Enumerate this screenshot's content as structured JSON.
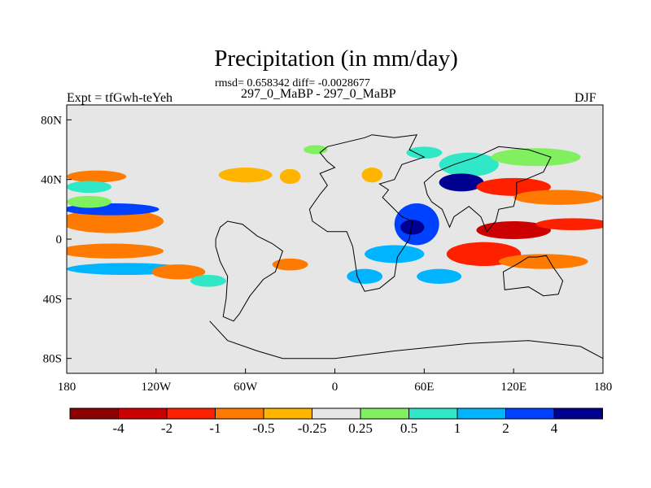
{
  "chart_data": {
    "type": "heatmap",
    "title": "Precipitation (in mm/day)",
    "subtitle": "rmsd= 0.658342 diff= -0.0028677",
    "left_label": "Expt = tfGwh-teYeh",
    "center_label": "297_0_MaBP - 297_0_MaBP",
    "right_label": "DJF",
    "x_axis": {
      "ticks": [
        {
          "value": -180,
          "label": "180"
        },
        {
          "value": -120,
          "label": "120W"
        },
        {
          "value": -60,
          "label": "60W"
        },
        {
          "value": 0,
          "label": "0"
        },
        {
          "value": 60,
          "label": "60E"
        },
        {
          "value": 120,
          "label": "120E"
        },
        {
          "value": 180,
          "label": "180"
        }
      ],
      "range": [
        -180,
        180
      ]
    },
    "y_axis": {
      "ticks": [
        {
          "value": 80,
          "label": "80N"
        },
        {
          "value": 40,
          "label": "40N"
        },
        {
          "value": 0,
          "label": "0"
        },
        {
          "value": -40,
          "label": "40S"
        },
        {
          "value": -80,
          "label": "80S"
        }
      ],
      "range": [
        -90,
        90
      ]
    },
    "colorbar": {
      "levels": [
        "-4",
        "-2",
        "-1",
        "-0.5",
        "-0.25",
        "0.25",
        "0.5",
        "1",
        "2",
        "4"
      ],
      "colors": [
        "#8b0000",
        "#cc0000",
        "#ff2000",
        "#ff7a00",
        "#ffb400",
        "#e6e6e6",
        "#80f060",
        "#30e8c8",
        "#00b4ff",
        "#0040ff",
        "#000090"
      ]
    },
    "anomaly_regions": [
      {
        "lon": -163,
        "lat": 11,
        "rlon": 22,
        "rlat": 4,
        "bin": 1
      },
      {
        "lon": -150,
        "lat": 12,
        "rlon": 35,
        "rlat": 8,
        "bin": 3
      },
      {
        "lon": -150,
        "lat": 20,
        "rlon": 32,
        "rlat": 4,
        "bin": 9
      },
      {
        "lon": -165,
        "lat": 25,
        "rlon": 15,
        "rlat": 4,
        "bin": 6
      },
      {
        "lon": -160,
        "lat": 42,
        "rlon": 20,
        "rlat": 4,
        "bin": 3
      },
      {
        "lon": -165,
        "lat": 35,
        "rlon": 15,
        "rlat": 4,
        "bin": 7
      },
      {
        "lon": -150,
        "lat": -8,
        "rlon": 35,
        "rlat": 5,
        "bin": 3
      },
      {
        "lon": -140,
        "lat": -20,
        "rlon": 40,
        "rlat": 4,
        "bin": 8
      },
      {
        "lon": -105,
        "lat": -22,
        "rlon": 18,
        "rlat": 5,
        "bin": 3
      },
      {
        "lon": -85,
        "lat": -28,
        "rlon": 12,
        "rlat": 4,
        "bin": 7
      },
      {
        "lon": -30,
        "lat": -17,
        "rlon": 12,
        "rlat": 4,
        "bin": 3
      },
      {
        "lon": -60,
        "lat": 43,
        "rlon": 18,
        "rlat": 5,
        "bin": 4
      },
      {
        "lon": -30,
        "lat": 42,
        "rlon": 7,
        "rlat": 5,
        "bin": 4
      },
      {
        "lon": -13,
        "lat": 60,
        "rlon": 8,
        "rlat": 3,
        "bin": 6
      },
      {
        "lon": 25,
        "lat": 43,
        "rlon": 7,
        "rlat": 5,
        "bin": 4
      },
      {
        "lon": 60,
        "lat": 58,
        "rlon": 12,
        "rlat": 4,
        "bin": 7
      },
      {
        "lon": 90,
        "lat": 50,
        "rlon": 20,
        "rlat": 8,
        "bin": 7
      },
      {
        "lon": 135,
        "lat": 55,
        "rlon": 30,
        "rlat": 6,
        "bin": 6
      },
      {
        "lon": 85,
        "lat": 38,
        "rlon": 15,
        "rlat": 6,
        "bin": 10
      },
      {
        "lon": 120,
        "lat": 35,
        "rlon": 25,
        "rlat": 6,
        "bin": 2
      },
      {
        "lon": 150,
        "lat": 28,
        "rlon": 30,
        "rlat": 5,
        "bin": 3
      },
      {
        "lon": 55,
        "lat": 10,
        "rlon": 15,
        "rlat": 14,
        "bin": 9
      },
      {
        "lon": 52,
        "lat": 8,
        "rlon": 8,
        "rlat": 5,
        "bin": 10
      },
      {
        "lon": 40,
        "lat": -10,
        "rlon": 20,
        "rlat": 6,
        "bin": 8
      },
      {
        "lon": 20,
        "lat": -25,
        "rlon": 12,
        "rlat": 5,
        "bin": 8
      },
      {
        "lon": 70,
        "lat": -25,
        "rlon": 15,
        "rlat": 5,
        "bin": 8
      },
      {
        "lon": 120,
        "lat": 6,
        "rlon": 25,
        "rlat": 6,
        "bin": 1
      },
      {
        "lon": 100,
        "lat": -10,
        "rlon": 25,
        "rlat": 8,
        "bin": 2
      },
      {
        "lon": 160,
        "lat": 10,
        "rlon": 25,
        "rlat": 4,
        "bin": 2
      },
      {
        "lon": 140,
        "lat": -15,
        "rlon": 30,
        "rlat": 5,
        "bin": 3
      }
    ]
  }
}
